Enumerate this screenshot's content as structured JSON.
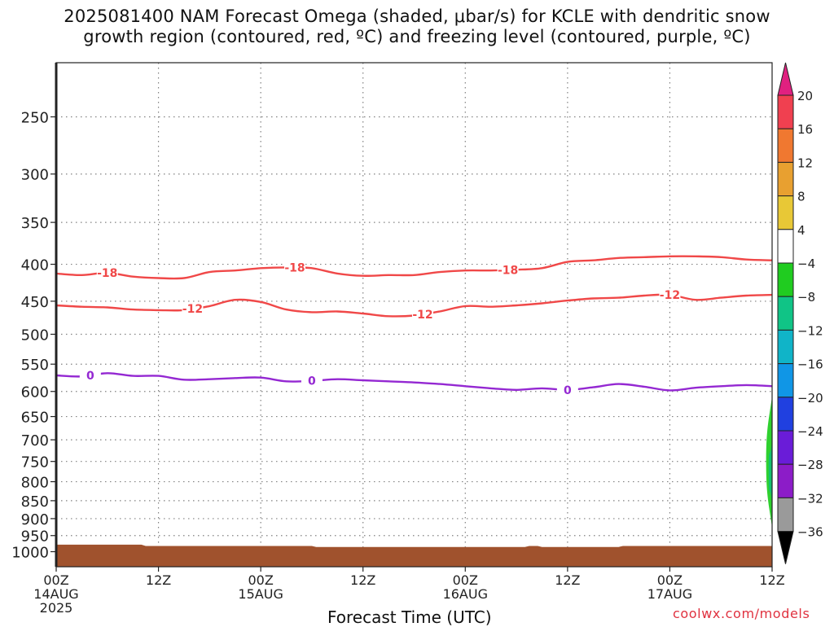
{
  "title": {
    "line1": "2025081400 NAM Forecast Omega (shaded, μbar/s) for KCLE with dendritic snow",
    "line2": "growth region (contoured, red, ºC) and freezing level (contoured, purple, ºC)"
  },
  "credit": "coolwx.com/models",
  "chart_data": {
    "type": "area",
    "xlabel": "Forecast Time (UTC)",
    "ylabel": "",
    "y_axis": {
      "type": "log-pressure",
      "inverted": true,
      "unit": "hPa",
      "ticks": [
        250,
        300,
        350,
        400,
        450,
        500,
        550,
        600,
        650,
        700,
        750,
        800,
        850,
        900,
        950,
        1000
      ]
    },
    "x_range_hours": [
      0,
      84
    ],
    "x_ticks": [
      {
        "hour": 0,
        "label": "00Z",
        "sub": "14AUG",
        "year": "2025"
      },
      {
        "hour": 12,
        "label": "12Z",
        "sub": "",
        "year": ""
      },
      {
        "hour": 24,
        "label": "00Z",
        "sub": "15AUG",
        "year": ""
      },
      {
        "hour": 36,
        "label": "12Z",
        "sub": "",
        "year": ""
      },
      {
        "hour": 48,
        "label": "00Z",
        "sub": "16AUG",
        "year": ""
      },
      {
        "hour": 60,
        "label": "12Z",
        "sub": "",
        "year": ""
      },
      {
        "hour": 72,
        "label": "00Z",
        "sub": "17AUG",
        "year": ""
      },
      {
        "hour": 84,
        "label": "12Z",
        "sub": "",
        "year": ""
      }
    ],
    "grid": true,
    "series": [
      {
        "name": "-18",
        "color": "#f04848",
        "x": [
          0,
          3,
          6,
          9,
          12,
          15,
          18,
          21,
          24,
          27,
          30,
          33,
          36,
          39,
          42,
          45,
          48,
          51,
          54,
          57,
          60,
          63,
          66,
          69,
          72,
          75,
          78,
          81,
          84
        ],
        "y": [
          412,
          414,
          411,
          416,
          418,
          418,
          410,
          408,
          405,
          404,
          405,
          412,
          415,
          414,
          414,
          410,
          408,
          408,
          407,
          405,
          397,
          395,
          392,
          391,
          390,
          390,
          391,
          394,
          395
        ],
        "labels_at": [
          6,
          28,
          53
        ]
      },
      {
        "name": "-12",
        "color": "#f04848",
        "x": [
          0,
          3,
          6,
          9,
          12,
          15,
          18,
          21,
          24,
          27,
          30,
          33,
          36,
          39,
          42,
          45,
          48,
          51,
          54,
          57,
          60,
          63,
          66,
          69,
          72,
          75,
          78,
          81,
          84
        ],
        "y": [
          456,
          458,
          459,
          462,
          463,
          463,
          457,
          448,
          451,
          462,
          466,
          465,
          468,
          472,
          471,
          465,
          457,
          458,
          456,
          453,
          449,
          446,
          445,
          442,
          441,
          448,
          445,
          442,
          441
        ],
        "labels_at": [
          16,
          43,
          72
        ]
      },
      {
        "name": "0",
        "color": "#9428d2",
        "x": [
          0,
          3,
          6,
          9,
          12,
          15,
          18,
          21,
          24,
          27,
          30,
          33,
          36,
          39,
          42,
          45,
          48,
          51,
          54,
          57,
          60,
          63,
          66,
          69,
          72,
          75,
          78,
          81,
          84
        ],
        "y": [
          570,
          572,
          566,
          571,
          571,
          578,
          577,
          575,
          574,
          581,
          580,
          577,
          579,
          581,
          583,
          586,
          590,
          594,
          597,
          594,
          597,
          592,
          586,
          591,
          598,
          593,
          590,
          588,
          590
        ],
        "labels_at": [
          4,
          30,
          60
        ]
      }
    ],
    "shaded": [
      {
        "name": "omega",
        "range": [
          -8,
          -4
        ],
        "color": "#2fd12f",
        "hour_range": [
          83.3,
          84
        ],
        "pressure_range": [
          610,
          925
        ]
      },
      {
        "name": "omega",
        "range": [
          -12,
          -8
        ],
        "color": "#14c070",
        "hour_range": [
          83.6,
          84
        ],
        "pressure_range": [
          700,
          860
        ]
      }
    ],
    "terrain": {
      "color": "#a0522d",
      "top_pressure_by_hour": [
        [
          0,
          978
        ],
        [
          10,
          978
        ],
        [
          10.5,
          982
        ],
        [
          30,
          982
        ],
        [
          30.5,
          985
        ],
        [
          55,
          985
        ],
        [
          55.5,
          982
        ],
        [
          56.5,
          982
        ],
        [
          57,
          985
        ],
        [
          66,
          985
        ],
        [
          66.5,
          982
        ],
        [
          84,
          982
        ]
      ]
    },
    "colorbar": {
      "labels": [
        "20",
        "16",
        "12",
        "8",
        "4",
        "−4",
        "−8",
        "−12",
        "−16",
        "−20",
        "−24",
        "−28",
        "−32",
        "−36"
      ],
      "colors": [
        "#f04050",
        "#f07830",
        "#e8a030",
        "#e8c836",
        "#ffffff",
        "#20cc20",
        "#10c486",
        "#10b4c8",
        "#1096e6",
        "#2040e0",
        "#6a1cd8",
        "#8c1cc8",
        "#9a9a9a"
      ],
      "top_arrow_color": "#e02080",
      "bottom_arrow_color": "#000000"
    }
  }
}
